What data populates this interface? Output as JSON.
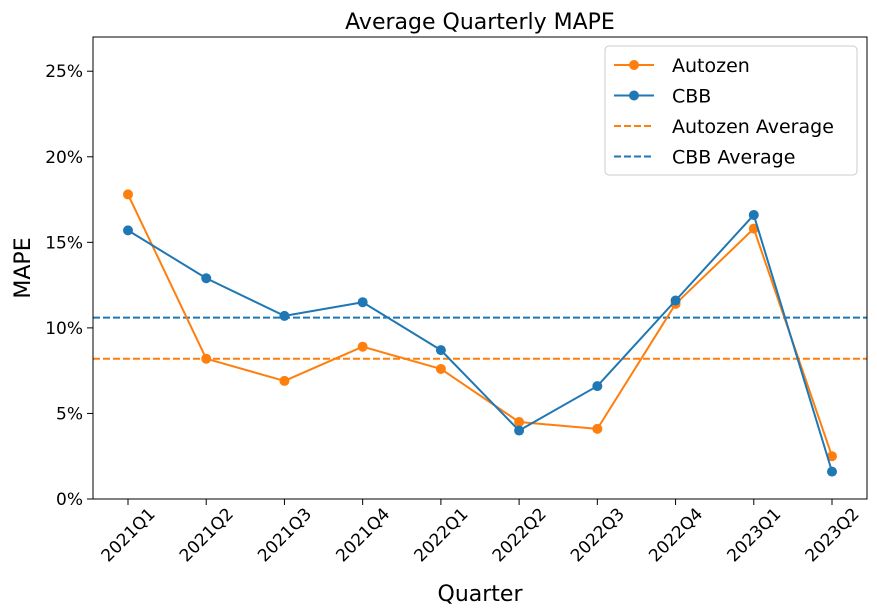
{
  "chart_data": {
    "type": "line",
    "title": "Average Quarterly MAPE",
    "xlabel": "Quarter",
    "ylabel": "MAPE",
    "categories": [
      "2021Q1",
      "2021Q2",
      "2021Q3",
      "2021Q4",
      "2022Q1",
      "2022Q2",
      "2022Q3",
      "2022Q4",
      "2023Q1",
      "2023Q2"
    ],
    "ylim": [
      0,
      27
    ],
    "yticks": [
      0,
      5,
      10,
      15,
      20,
      25
    ],
    "ytick_labels": [
      "0%",
      "5%",
      "10%",
      "15%",
      "20%",
      "25%"
    ],
    "grid": false,
    "legend_position": "top-right",
    "series": [
      {
        "name": "Autozen",
        "color": "#ff7f0e",
        "values": [
          17.8,
          8.2,
          6.9,
          8.9,
          7.6,
          4.5,
          4.1,
          11.4,
          15.8,
          2.5
        ]
      },
      {
        "name": "CBB",
        "color": "#1f77b4",
        "values": [
          15.7,
          12.9,
          10.7,
          11.5,
          8.7,
          4.0,
          6.6,
          11.6,
          16.6,
          1.6
        ]
      }
    ],
    "reference_lines": [
      {
        "name": "Autozen Average",
        "color": "#ff7f0e",
        "value": 8.2,
        "style": "dashed"
      },
      {
        "name": "CBB Average",
        "color": "#1f77b4",
        "value": 10.6,
        "style": "dashed"
      }
    ]
  }
}
